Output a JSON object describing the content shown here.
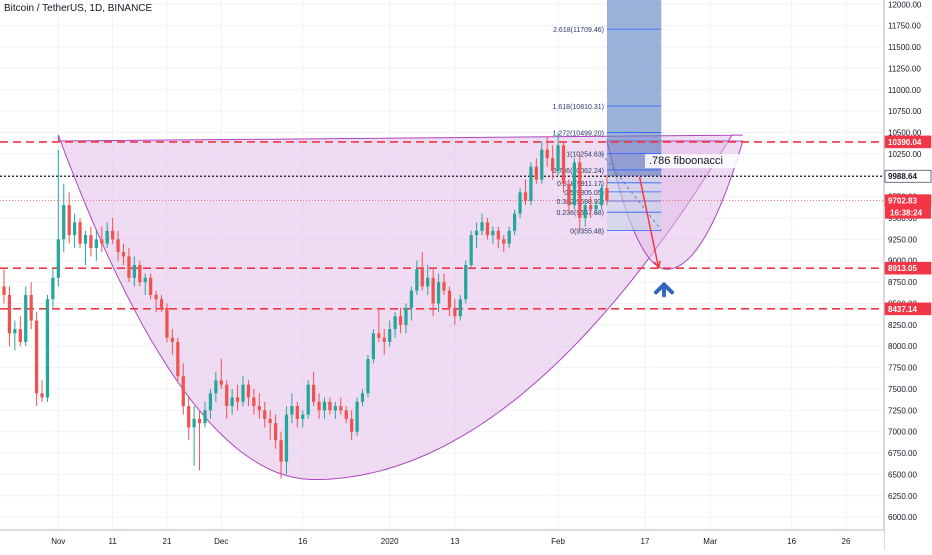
{
  "header": {
    "title": "Bitcoin / TetherUS, 1D, BINANCE"
  },
  "colors": {
    "up": "#26a69a",
    "down": "#ef5350",
    "dashed_red": "#f23645",
    "fib_line": "#2962ff",
    "cup_fill": "#e1bee7",
    "cup_stroke": "#ab47bc",
    "projection_fill": "#5b7fbf",
    "arrow_red": "#f23645",
    "arrow_blue": "#2f67c1",
    "axis_text": "#131722",
    "grid": "#f0f3fa"
  },
  "chart_data": {
    "type": "candlestick",
    "title": "Bitcoin / TetherUS, 1D, BINANCE",
    "xlabel": "",
    "ylabel": "",
    "ylim": [
      5850,
      12050
    ],
    "grid": true,
    "y_ticks": [
      6000,
      6250,
      6500,
      6750,
      7000,
      7250,
      7500,
      7750,
      8000,
      8250,
      8500,
      8750,
      9000,
      9250,
      9500,
      9750,
      10000,
      10250,
      10500,
      10750,
      11000,
      11250,
      11500,
      11750,
      12000
    ],
    "y_tick_labels": [
      "6000.00",
      "6250.00",
      "6500.00",
      "6750.00",
      "7000.00",
      "7250.00",
      "7500.00",
      "7750.00",
      "8000.00",
      "8250.00",
      "8500.00",
      "8750.00",
      "9000.00",
      "9250.00",
      "9500.00",
      "9750.00",
      "10000.00",
      "10250.00",
      "10500.00",
      "10750.00",
      "11000.00",
      "11250.00",
      "11500.00",
      "11750.00",
      "12000.00"
    ],
    "x_ticks": [
      {
        "label": "Nov",
        "day": 10
      },
      {
        "label": "11",
        "day": 20
      },
      {
        "label": "21",
        "day": 30
      },
      {
        "label": "Dec",
        "day": 40
      },
      {
        "label": "16",
        "day": 55
      },
      {
        "label": "2020",
        "day": 71
      },
      {
        "label": "13",
        "day": 83
      },
      {
        "label": "Feb",
        "day": 102
      },
      {
        "label": "17",
        "day": 118
      },
      {
        "label": "Mar",
        "day": 130
      },
      {
        "label": "16",
        "day": 145
      },
      {
        "label": "26",
        "day": 155
      }
    ],
    "x_range": [
      0,
      162
    ],
    "horizontal_levels": [
      {
        "value": 10390.04,
        "label": "10390.04",
        "style": "dashed-red"
      },
      {
        "value": 9988.64,
        "label": "9988.64",
        "style": "dotted-black"
      },
      {
        "value": 9702.83,
        "label": "9702.83",
        "style": "dotted-red"
      },
      {
        "value": 8913.05,
        "label": "8913.05",
        "style": "dashed-red"
      },
      {
        "value": 8437.14,
        "label": "8437.14",
        "style": "dashed-red"
      }
    ],
    "countdown_label": "16:38:24",
    "fibonacci": {
      "levels": [
        {
          "label": "2.618(11709.46)",
          "value": 11709.46
        },
        {
          "label": "1.618(10810.31)",
          "value": 10810.31
        },
        {
          "label": "1.272(10499.20)",
          "value": 10499.2
        },
        {
          "label": "1(10254.63)",
          "value": 10254.63
        },
        {
          "label": "0.786(10062.24)",
          "value": 10062.24
        },
        {
          "label": "0.618(9911.17)",
          "value": 9911.17
        },
        {
          "label": "0.5(9805.05)",
          "value": 9805.05
        },
        {
          "label": "0.382(9698.93)",
          "value": 9698.93
        },
        {
          "label": "0.236(9567.68)",
          "value": 9567.68
        },
        {
          "label": "0(9355.48)",
          "value": 9355.48
        }
      ],
      "annotation": ".786 fiboonacci"
    },
    "candles": [
      {
        "day": 0,
        "o": 8700,
        "h": 8900,
        "l": 8500,
        "c": 8600
      },
      {
        "day": 1,
        "o": 8600,
        "h": 8700,
        "l": 8000,
        "c": 8150
      },
      {
        "day": 2,
        "o": 8150,
        "h": 8300,
        "l": 7950,
        "c": 8200
      },
      {
        "day": 3,
        "o": 8200,
        "h": 8350,
        "l": 8000,
        "c": 8050
      },
      {
        "day": 4,
        "o": 8050,
        "h": 8700,
        "l": 8000,
        "c": 8600
      },
      {
        "day": 5,
        "o": 8600,
        "h": 8750,
        "l": 8200,
        "c": 8300
      },
      {
        "day": 6,
        "o": 8300,
        "h": 8400,
        "l": 7300,
        "c": 7450
      },
      {
        "day": 7,
        "o": 7450,
        "h": 7600,
        "l": 7350,
        "c": 7400
      },
      {
        "day": 8,
        "o": 7400,
        "h": 8600,
        "l": 7350,
        "c": 8550
      },
      {
        "day": 9,
        "o": 8550,
        "h": 8900,
        "l": 8450,
        "c": 8800
      },
      {
        "day": 10,
        "o": 8800,
        "h": 10300,
        "l": 8700,
        "c": 9250
      },
      {
        "day": 11,
        "o": 9250,
        "h": 9900,
        "l": 9100,
        "c": 9650
      },
      {
        "day": 12,
        "o": 9650,
        "h": 9800,
        "l": 9200,
        "c": 9300
      },
      {
        "day": 13,
        "o": 9300,
        "h": 9550,
        "l": 9150,
        "c": 9450
      },
      {
        "day": 14,
        "o": 9450,
        "h": 9500,
        "l": 9150,
        "c": 9200
      },
      {
        "day": 15,
        "o": 9200,
        "h": 9350,
        "l": 8950,
        "c": 9300
      },
      {
        "day": 16,
        "o": 9300,
        "h": 9400,
        "l": 9050,
        "c": 9150
      },
      {
        "day": 17,
        "o": 9150,
        "h": 9350,
        "l": 9000,
        "c": 9250
      },
      {
        "day": 18,
        "o": 9250,
        "h": 9400,
        "l": 9100,
        "c": 9200
      },
      {
        "day": 19,
        "o": 9200,
        "h": 9450,
        "l": 9150,
        "c": 9350
      },
      {
        "day": 20,
        "o": 9350,
        "h": 9500,
        "l": 9200,
        "c": 9250
      },
      {
        "day": 21,
        "o": 9250,
        "h": 9350,
        "l": 9000,
        "c": 9100
      },
      {
        "day": 22,
        "o": 9100,
        "h": 9200,
        "l": 8950,
        "c": 9050
      },
      {
        "day": 23,
        "o": 9050,
        "h": 9150,
        "l": 8750,
        "c": 8800
      },
      {
        "day": 24,
        "o": 8800,
        "h": 9050,
        "l": 8700,
        "c": 8950
      },
      {
        "day": 25,
        "o": 8950,
        "h": 9000,
        "l": 8700,
        "c": 8750
      },
      {
        "day": 26,
        "o": 8750,
        "h": 8850,
        "l": 8600,
        "c": 8800
      },
      {
        "day": 27,
        "o": 8800,
        "h": 8850,
        "l": 8550,
        "c": 8600
      },
      {
        "day": 28,
        "o": 8600,
        "h": 8650,
        "l": 8400,
        "c": 8550
      },
      {
        "day": 29,
        "o": 8550,
        "h": 8600,
        "l": 8400,
        "c": 8450
      },
      {
        "day": 30,
        "o": 8450,
        "h": 8500,
        "l": 8050,
        "c": 8100
      },
      {
        "day": 31,
        "o": 8100,
        "h": 8200,
        "l": 7900,
        "c": 8050
      },
      {
        "day": 32,
        "o": 8050,
        "h": 8100,
        "l": 7600,
        "c": 7650
      },
      {
        "day": 33,
        "o": 7650,
        "h": 7800,
        "l": 7200,
        "c": 7300
      },
      {
        "day": 34,
        "o": 7300,
        "h": 7400,
        "l": 6900,
        "c": 7050
      },
      {
        "day": 35,
        "o": 7050,
        "h": 7300,
        "l": 6600,
        "c": 7150
      },
      {
        "day": 36,
        "o": 7150,
        "h": 7250,
        "l": 6550,
        "c": 7100
      },
      {
        "day": 37,
        "o": 7100,
        "h": 7350,
        "l": 7050,
        "c": 7250
      },
      {
        "day": 38,
        "o": 7250,
        "h": 7500,
        "l": 7150,
        "c": 7450
      },
      {
        "day": 39,
        "o": 7450,
        "h": 7700,
        "l": 7350,
        "c": 7600
      },
      {
        "day": 40,
        "o": 7600,
        "h": 7850,
        "l": 7500,
        "c": 7550
      },
      {
        "day": 41,
        "o": 7550,
        "h": 7600,
        "l": 7150,
        "c": 7300
      },
      {
        "day": 42,
        "o": 7300,
        "h": 7500,
        "l": 7200,
        "c": 7400
      },
      {
        "day": 43,
        "o": 7400,
        "h": 7550,
        "l": 7250,
        "c": 7350
      },
      {
        "day": 44,
        "o": 7350,
        "h": 7650,
        "l": 7300,
        "c": 7550
      },
      {
        "day": 45,
        "o": 7550,
        "h": 7600,
        "l": 7300,
        "c": 7400
      },
      {
        "day": 46,
        "o": 7400,
        "h": 7500,
        "l": 7200,
        "c": 7300
      },
      {
        "day": 47,
        "o": 7300,
        "h": 7450,
        "l": 7150,
        "c": 7250
      },
      {
        "day": 48,
        "o": 7250,
        "h": 7350,
        "l": 7050,
        "c": 7150
      },
      {
        "day": 49,
        "o": 7150,
        "h": 7250,
        "l": 6900,
        "c": 7100
      },
      {
        "day": 50,
        "o": 7100,
        "h": 7200,
        "l": 6800,
        "c": 6900
      },
      {
        "day": 51,
        "o": 6900,
        "h": 7000,
        "l": 6450,
        "c": 6650
      },
      {
        "day": 52,
        "o": 6650,
        "h": 7300,
        "l": 6500,
        "c": 7200
      },
      {
        "day": 53,
        "o": 7200,
        "h": 7450,
        "l": 7100,
        "c": 7300
      },
      {
        "day": 54,
        "o": 7300,
        "h": 7350,
        "l": 7050,
        "c": 7150
      },
      {
        "day": 55,
        "o": 7150,
        "h": 7250,
        "l": 7050,
        "c": 7200
      },
      {
        "day": 56,
        "o": 7200,
        "h": 7600,
        "l": 7150,
        "c": 7550
      },
      {
        "day": 57,
        "o": 7550,
        "h": 7700,
        "l": 7300,
        "c": 7350
      },
      {
        "day": 58,
        "o": 7350,
        "h": 7450,
        "l": 7150,
        "c": 7250
      },
      {
        "day": 59,
        "o": 7250,
        "h": 7400,
        "l": 7150,
        "c": 7350
      },
      {
        "day": 60,
        "o": 7350,
        "h": 7400,
        "l": 7200,
        "c": 7250
      },
      {
        "day": 61,
        "o": 7250,
        "h": 7350,
        "l": 7150,
        "c": 7300
      },
      {
        "day": 62,
        "o": 7300,
        "h": 7400,
        "l": 7200,
        "c": 7250
      },
      {
        "day": 63,
        "o": 7250,
        "h": 7300,
        "l": 7100,
        "c": 7150
      },
      {
        "day": 64,
        "o": 7150,
        "h": 7250,
        "l": 6900,
        "c": 7000
      },
      {
        "day": 65,
        "o": 7000,
        "h": 7400,
        "l": 6950,
        "c": 7350
      },
      {
        "day": 66,
        "o": 7350,
        "h": 7500,
        "l": 7300,
        "c": 7450
      },
      {
        "day": 67,
        "o": 7450,
        "h": 7900,
        "l": 7400,
        "c": 7850
      },
      {
        "day": 68,
        "o": 7850,
        "h": 8200,
        "l": 7800,
        "c": 8150
      },
      {
        "day": 69,
        "o": 8150,
        "h": 8450,
        "l": 8050,
        "c": 8100
      },
      {
        "day": 70,
        "o": 8100,
        "h": 8200,
        "l": 7900,
        "c": 8050
      },
      {
        "day": 71,
        "o": 8050,
        "h": 8300,
        "l": 8000,
        "c": 8200
      },
      {
        "day": 72,
        "o": 8200,
        "h": 8400,
        "l": 8100,
        "c": 8350
      },
      {
        "day": 73,
        "o": 8350,
        "h": 8450,
        "l": 8150,
        "c": 8250
      },
      {
        "day": 74,
        "o": 8250,
        "h": 8500,
        "l": 8150,
        "c": 8450
      },
      {
        "day": 75,
        "o": 8450,
        "h": 8700,
        "l": 8300,
        "c": 8650
      },
      {
        "day": 76,
        "o": 8650,
        "h": 9000,
        "l": 8600,
        "c": 8900
      },
      {
        "day": 77,
        "o": 8900,
        "h": 9100,
        "l": 8650,
        "c": 8700
      },
      {
        "day": 78,
        "o": 8700,
        "h": 8950,
        "l": 8600,
        "c": 8800
      },
      {
        "day": 79,
        "o": 8800,
        "h": 8900,
        "l": 8350,
        "c": 8500
      },
      {
        "day": 80,
        "o": 8500,
        "h": 8850,
        "l": 8400,
        "c": 8750
      },
      {
        "day": 81,
        "o": 8750,
        "h": 8850,
        "l": 8600,
        "c": 8650
      },
      {
        "day": 82,
        "o": 8650,
        "h": 8700,
        "l": 8350,
        "c": 8450
      },
      {
        "day": 83,
        "o": 8450,
        "h": 8550,
        "l": 8250,
        "c": 8350
      },
      {
        "day": 84,
        "o": 8350,
        "h": 8600,
        "l": 8300,
        "c": 8550
      },
      {
        "day": 85,
        "o": 8550,
        "h": 9000,
        "l": 8500,
        "c": 8950
      },
      {
        "day": 86,
        "o": 8950,
        "h": 9350,
        "l": 8900,
        "c": 9300
      },
      {
        "day": 87,
        "o": 9300,
        "h": 9450,
        "l": 9150,
        "c": 9350
      },
      {
        "day": 88,
        "o": 9350,
        "h": 9550,
        "l": 9300,
        "c": 9450
      },
      {
        "day": 89,
        "o": 9450,
        "h": 9500,
        "l": 9250,
        "c": 9300
      },
      {
        "day": 90,
        "o": 9300,
        "h": 9400,
        "l": 9200,
        "c": 9350
      },
      {
        "day": 91,
        "o": 9350,
        "h": 9400,
        "l": 9150,
        "c": 9250
      },
      {
        "day": 92,
        "o": 9250,
        "h": 9300,
        "l": 9100,
        "c": 9200
      },
      {
        "day": 93,
        "o": 9200,
        "h": 9400,
        "l": 9150,
        "c": 9350
      },
      {
        "day": 94,
        "o": 9350,
        "h": 9600,
        "l": 9300,
        "c": 9550
      },
      {
        "day": 95,
        "o": 9550,
        "h": 9850,
        "l": 9500,
        "c": 9800
      },
      {
        "day": 96,
        "o": 9800,
        "h": 9950,
        "l": 9650,
        "c": 9700
      },
      {
        "day": 97,
        "o": 9700,
        "h": 10150,
        "l": 9650,
        "c": 10100
      },
      {
        "day": 98,
        "o": 10100,
        "h": 10200,
        "l": 9900,
        "c": 9950
      },
      {
        "day": 99,
        "o": 9950,
        "h": 10400,
        "l": 9900,
        "c": 10300
      },
      {
        "day": 100,
        "o": 10300,
        "h": 10450,
        "l": 10100,
        "c": 10200
      },
      {
        "day": 101,
        "o": 10200,
        "h": 10350,
        "l": 9950,
        "c": 10050
      },
      {
        "day": 102,
        "o": 10050,
        "h": 10500,
        "l": 10000,
        "c": 10350
      },
      {
        "day": 103,
        "o": 10350,
        "h": 10400,
        "l": 9800,
        "c": 9900
      },
      {
        "day": 104,
        "o": 9900,
        "h": 9950,
        "l": 9550,
        "c": 9650
      },
      {
        "day": 105,
        "o": 9650,
        "h": 10200,
        "l": 9600,
        "c": 10150
      },
      {
        "day": 106,
        "o": 10150,
        "h": 10250,
        "l": 9350,
        "c": 9500
      },
      {
        "day": 107,
        "o": 9500,
        "h": 9700,
        "l": 9400,
        "c": 9650
      },
      {
        "day": 108,
        "o": 9650,
        "h": 9750,
        "l": 9500,
        "c": 9600
      },
      {
        "day": 109,
        "o": 9600,
        "h": 9700,
        "l": 9550,
        "c": 9650
      },
      {
        "day": 110,
        "o": 9650,
        "h": 9900,
        "l": 9600,
        "c": 9850
      },
      {
        "day": 111,
        "o": 9850,
        "h": 10000,
        "l": 9650,
        "c": 9700
      }
    ]
  }
}
